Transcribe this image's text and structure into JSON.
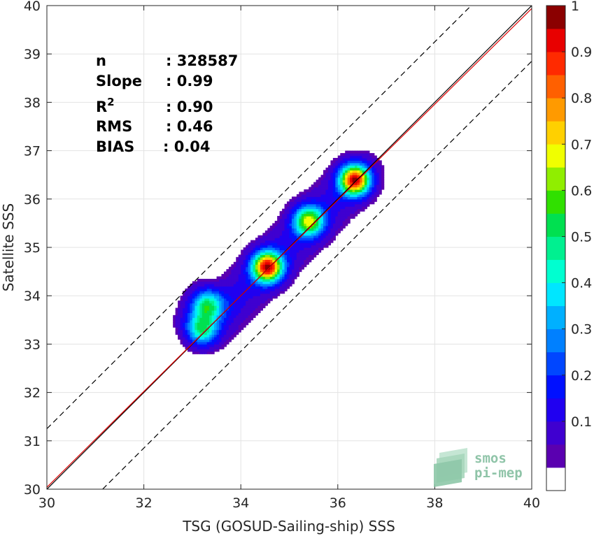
{
  "chart_data": {
    "type": "heatmap",
    "subtype": "density contour (filled)",
    "xlabel": "TSG (GOSUD-Sailing-ship) SSS",
    "ylabel": "Satellite SSS",
    "xlim": [
      30,
      40
    ],
    "ylim": [
      30,
      40
    ],
    "x_ticks": [
      30,
      32,
      34,
      36,
      38,
      40
    ],
    "y_ticks": [
      30,
      31,
      32,
      33,
      34,
      35,
      36,
      37,
      38,
      39,
      40
    ],
    "grid": true,
    "stats": [
      {
        "label": "n",
        "value": ": 328587"
      },
      {
        "label": "Slope",
        "value": ": 0.99"
      },
      {
        "label": "R",
        "superscript": "2",
        "value": ": 0.90"
      },
      {
        "label": "RMS",
        "value": ": 0.46"
      },
      {
        "label": "BIAS",
        "value": ": 0.04"
      }
    ],
    "reference_lines": [
      {
        "name": "one-to-one",
        "style": "solid",
        "color": "#000000",
        "points": [
          [
            30,
            30
          ],
          [
            40,
            40
          ]
        ]
      },
      {
        "name": "regression",
        "style": "solid",
        "color": "#e00000",
        "points": [
          [
            30,
            30.04
          ],
          [
            40,
            39.94
          ]
        ]
      },
      {
        "name": "upper-bound",
        "style": "dashed",
        "color": "#000000",
        "points": [
          [
            30,
            31.25
          ],
          [
            38.75,
            40
          ]
        ]
      },
      {
        "name": "lower-bound",
        "style": "dashed",
        "color": "#000000",
        "points": [
          [
            31.15,
            30
          ],
          [
            40,
            38.85
          ]
        ]
      }
    ],
    "density_peaks": [
      {
        "x": 36.35,
        "y": 36.4,
        "density": 1.0
      },
      {
        "x": 34.55,
        "y": 34.6,
        "density": 0.98
      },
      {
        "x": 35.4,
        "y": 35.55,
        "density": 0.65
      },
      {
        "x": 33.2,
        "y": 33.3,
        "density": 0.4
      },
      {
        "x": 33.3,
        "y": 33.8,
        "density": 0.4
      }
    ],
    "colorbar": {
      "range": [
        0,
        1
      ],
      "tick_labels": [
        "0.1",
        "0.2",
        "0.3",
        "0.4",
        "0.5",
        "0.6",
        "0.7",
        "0.8",
        "0.9",
        "1"
      ],
      "tick_values": [
        0.1,
        0.2,
        0.3,
        0.4,
        0.5,
        0.6,
        0.7,
        0.8,
        0.9,
        1.0
      ],
      "levels": 20,
      "colors": [
        "#ffffff",
        "#5a00b0",
        "#3f00d0",
        "#2000f0",
        "#0010ff",
        "#0046ff",
        "#0080ff",
        "#00b0ff",
        "#00e6ff",
        "#00ffd0",
        "#00f090",
        "#00e050",
        "#30e000",
        "#90ee00",
        "#f0ff00",
        "#ffd000",
        "#ff9a00",
        "#ff6000",
        "#ff2a00",
        "#e80000",
        "#8b0000"
      ]
    }
  },
  "logo": {
    "line1": "smos",
    "line2": "pi-mep"
  }
}
